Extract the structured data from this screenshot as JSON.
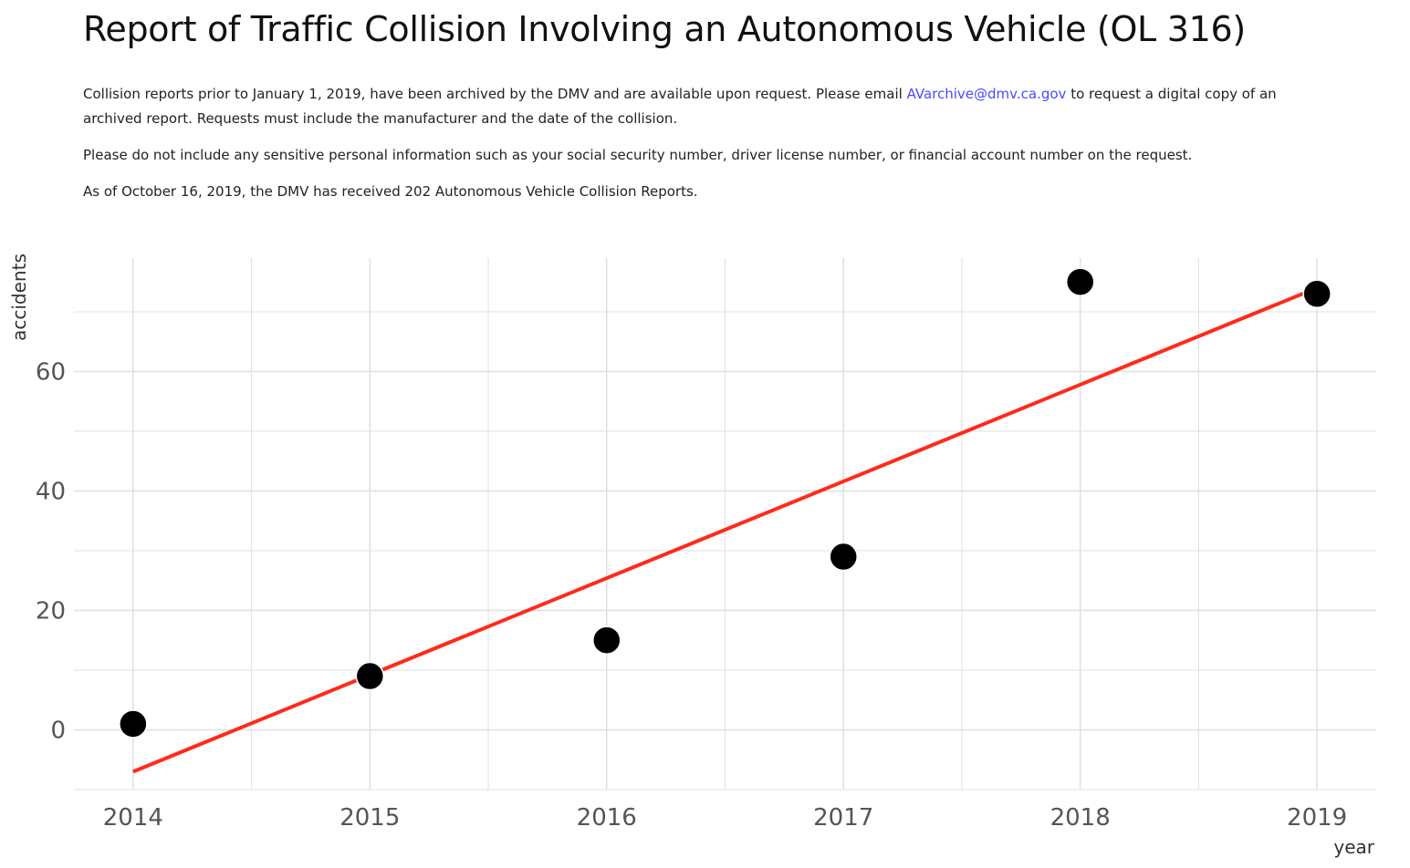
{
  "header": {
    "title": "Report of Traffic Collision Involving an Autonomous Vehicle (OL 316)",
    "p1_before": "Collision reports prior to January 1, 2019, have been archived by the DMV and are available upon request. Please email ",
    "email": "AVarchive@dmv.ca.gov",
    "p1_after": " to request a digital copy of an archived report. Requests must include the manufacturer and the date of the collision.",
    "p2": "Please do not include any sensitive personal information such as your social security number, driver license number, or financial account number on the request.",
    "p3": "As of October 16, 2019, the DMV has received 202 Autonomous Vehicle Collision Reports."
  },
  "colors": {
    "link": "#4a4aff",
    "grid": "#e0e0e0",
    "point": "#000000",
    "fit_line": "#ff2a1a"
  },
  "chart_data": {
    "type": "scatter",
    "xlabel": "year",
    "ylabel": "accidents",
    "xlim": [
      2013.75,
      2019.25
    ],
    "ylim": [
      -10,
      79
    ],
    "x_ticks": [
      2014,
      2015,
      2016,
      2017,
      2018,
      2019
    ],
    "y_ticks": [
      0,
      20,
      40,
      60
    ],
    "grid": true,
    "series": [
      {
        "points": [
          {
            "x": 2014,
            "y": 1
          },
          {
            "x": 2015,
            "y": 9
          },
          {
            "x": 2016,
            "y": 15
          },
          {
            "x": 2017,
            "y": 29
          },
          {
            "x": 2018,
            "y": 75
          },
          {
            "x": 2019,
            "y": 73
          }
        ]
      }
    ],
    "trend_line": {
      "x": [
        2014,
        2019
      ],
      "y": [
        -7,
        74
      ]
    }
  }
}
